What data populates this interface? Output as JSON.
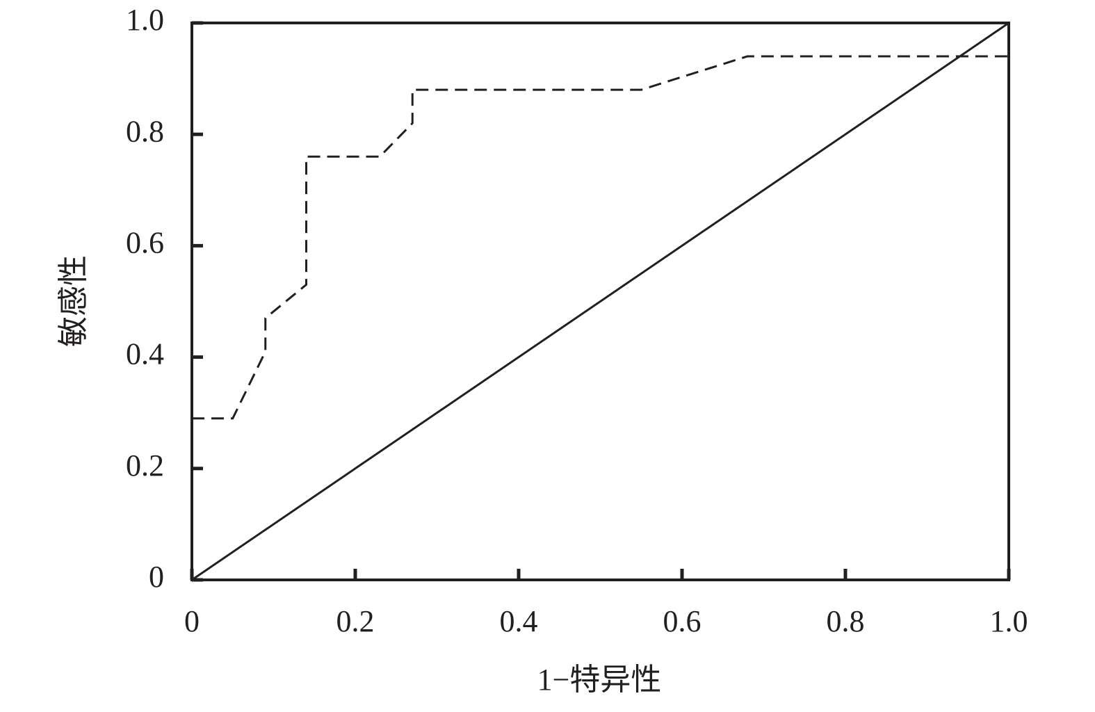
{
  "chart_data": {
    "type": "line",
    "x_label": "1−特异性",
    "y_label": "敏感性",
    "xlim": [
      0,
      1
    ],
    "ylim": [
      0,
      1
    ],
    "xticks": [
      0,
      0.2,
      0.4,
      0.6,
      0.8,
      {
        "value": 1,
        "label": "1.0"
      }
    ],
    "yticks": [
      0,
      0.2,
      0.4,
      0.6,
      0.8,
      {
        "value": 1,
        "label": "1.0"
      }
    ],
    "grid": false,
    "series": [
      {
        "color": "#231f20",
        "dashed": true,
        "x": [
          0,
          0.05,
          0.09,
          0.09,
          0.14,
          0.14,
          0.23,
          0.27,
          0.27,
          0.55,
          0.68,
          1
        ],
        "values": [
          0.29,
          0.29,
          0.41,
          0.47,
          0.53,
          0.76,
          0.76,
          0.82,
          0.88,
          0.88,
          0.94,
          0.94
        ]
      },
      {
        "color": "#231f20",
        "dashed": false,
        "x": [
          0,
          1
        ],
        "values": [
          0,
          1
        ]
      }
    ]
  }
}
